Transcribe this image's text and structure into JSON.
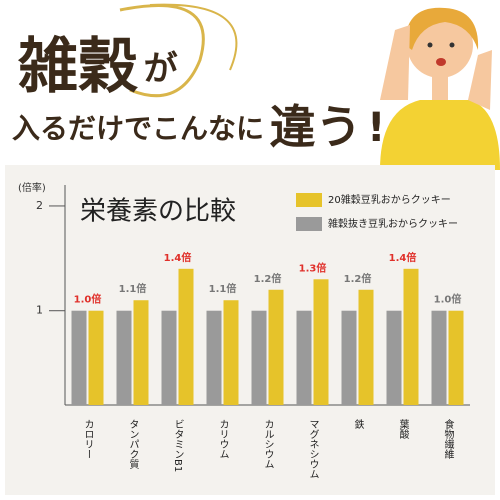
{
  "header": {
    "parts": [
      "雑穀",
      "が",
      "入るだけでこんなに",
      "違う",
      "!"
    ]
  },
  "chart_data": {
    "type": "bar",
    "title": "栄養素の比較",
    "y_label": "(倍率)",
    "categories": [
      "カロリー",
      "タンパク質",
      "ビタミンB1",
      "カリウム",
      "カルシウム",
      "マグネシウム",
      "鉄",
      "葉酸",
      "食物繊維"
    ],
    "series": [
      {
        "name": "雑穀抜き豆乳おからクッキー",
        "color": "#9a9a9a",
        "values": [
          1,
          1,
          1,
          1,
          1,
          1,
          1,
          1,
          1
        ]
      },
      {
        "name": "20雑穀豆乳おからクッキー",
        "color": "#e6c32a",
        "values": [
          1.0,
          1.1,
          1.4,
          1.1,
          1.2,
          1.3,
          1.2,
          1.4,
          1.0
        ],
        "value_labels": [
          "1.0倍",
          "1.1倍",
          "1.4倍",
          "1.1倍",
          "1.2倍",
          "1.3倍",
          "1.2倍",
          "1.4倍",
          "1.0倍"
        ],
        "value_label_colors": [
          "#e0302a",
          "#777777",
          "#e0302a",
          "#777777",
          "#777777",
          "#e0302a",
          "#777777",
          "#e0302a",
          "#777777"
        ]
      }
    ],
    "ylim": [
      0.1,
      2.2
    ],
    "yticks": [
      1,
      2
    ],
    "grid": false
  }
}
